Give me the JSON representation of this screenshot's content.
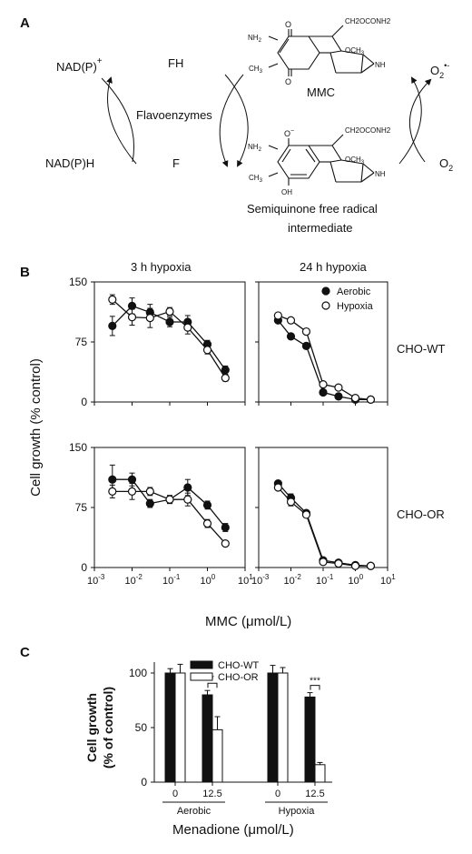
{
  "panel_labels": {
    "a": "A",
    "b": "B",
    "c": "C"
  },
  "panel_a": {
    "nadp_plus": "NAD(P)",
    "nadp_plus_sup": "+",
    "nadph": "NAD(P)H",
    "fh": "FH",
    "f": "F",
    "flavoenzymes": "Flavoenzymes",
    "mmc_name": "MMC",
    "semiquinone_line1": "Semiquinone free radical",
    "semiquinone_line2": "intermediate",
    "o2_radical": "O",
    "o2_radical_sub": "2",
    "o2_radical_sup": "•-",
    "o2": "O",
    "o2_sub": "2",
    "struct_labels": {
      "nh2": "NH",
      "nh2_sub": "2",
      "ch3": "CH",
      "ch3_sub": "3",
      "och3": "OCH",
      "och3_sub": "3",
      "carbamate": "CH2OCONH2",
      "nh": "NH",
      "oh": "OH",
      "o_minus": "O",
      "o_minus_sup": "−",
      "o": "O"
    }
  },
  "panel_b": {
    "ylabel": "Cell growth (% control)",
    "xlabel": "MMC (μmol/L)",
    "col_titles": [
      "3 h hypoxia",
      "24 h hypoxia"
    ],
    "row_labels": [
      "CHO-WT",
      "CHO-OR"
    ],
    "legend": [
      {
        "name": "Aerobic",
        "marker": "filled"
      },
      {
        "name": "Hypoxia",
        "marker": "open"
      }
    ],
    "y_ticks": [
      "0",
      "75",
      "150"
    ],
    "x_tick_bases": [
      "10",
      "10",
      "10",
      "10",
      "10"
    ],
    "x_tick_exps": [
      "-3",
      "-2",
      "-1",
      "0",
      "1"
    ]
  },
  "panel_c": {
    "ylabel_line1": "Cell growth",
    "ylabel_line2": "(% of control)",
    "xlabel": "Menadione (μmol/L)",
    "legend": [
      "CHO-WT",
      "CHO-OR"
    ],
    "y_ticks": [
      "0",
      "50",
      "100"
    ],
    "dose_labels": [
      "0",
      "12.5",
      "0",
      "12.5"
    ],
    "group_labels": [
      "Aerobic",
      "Hypoxia"
    ],
    "significance": [
      "*",
      "***"
    ]
  },
  "colors": {
    "black": "#111111",
    "white": "#ffffff",
    "grey": "#555555"
  },
  "chart_data": [
    {
      "type": "line",
      "panel": "B",
      "col_title": "3 h hypoxia",
      "row": "CHO-WT",
      "x_scale": "log",
      "xlim": [
        0.001,
        10
      ],
      "ylim": [
        0,
        150
      ],
      "series": [
        {
          "name": "Aerobic",
          "x": [
            0.003,
            0.01,
            0.03,
            0.1,
            0.3,
            1,
            3
          ],
          "y": [
            95,
            120,
            112,
            100,
            100,
            72,
            40
          ],
          "err": [
            12,
            10,
            10,
            6,
            8,
            5,
            5
          ]
        },
        {
          "name": "Hypoxia",
          "x": [
            0.003,
            0.01,
            0.03,
            0.1,
            0.3,
            1,
            3
          ],
          "y": [
            128,
            106,
            105,
            113,
            93,
            65,
            30
          ],
          "err": [
            6,
            10,
            12,
            5,
            8,
            5,
            4
          ]
        }
      ]
    },
    {
      "type": "line",
      "panel": "B",
      "col_title": "24 h hypoxia",
      "row": "CHO-WT",
      "x_scale": "log",
      "xlim": [
        0.001,
        10
      ],
      "ylim": [
        0,
        150
      ],
      "series": [
        {
          "name": "Aerobic",
          "x": [
            0.004,
            0.01,
            0.03,
            0.1,
            0.3,
            1,
            3
          ],
          "y": [
            102,
            82,
            70,
            12,
            7,
            3,
            3
          ],
          "err": [
            0,
            0,
            0,
            0,
            0,
            0,
            0
          ]
        },
        {
          "name": "Hypoxia",
          "x": [
            0.004,
            0.01,
            0.03,
            0.1,
            0.3,
            1,
            3
          ],
          "y": [
            108,
            102,
            88,
            22,
            18,
            5,
            3
          ],
          "err": [
            0,
            0,
            0,
            0,
            0,
            0,
            0
          ]
        }
      ]
    },
    {
      "type": "line",
      "panel": "B",
      "col_title": "3 h hypoxia",
      "row": "CHO-OR",
      "x_scale": "log",
      "xlim": [
        0.001,
        10
      ],
      "ylim": [
        0,
        150
      ],
      "series": [
        {
          "name": "Aerobic",
          "x": [
            0.003,
            0.01,
            0.03,
            0.1,
            0.3,
            1,
            3
          ],
          "y": [
            110,
            110,
            80,
            85,
            100,
            78,
            50
          ],
          "err": [
            18,
            8,
            5,
            5,
            10,
            5,
            5
          ]
        },
        {
          "name": "Hypoxia",
          "x": [
            0.003,
            0.01,
            0.03,
            0.1,
            0.3,
            1,
            3
          ],
          "y": [
            95,
            95,
            95,
            85,
            85,
            55,
            30
          ],
          "err": [
            8,
            10,
            5,
            5,
            8,
            5,
            3
          ]
        }
      ]
    },
    {
      "type": "line",
      "panel": "B",
      "col_title": "24 h hypoxia",
      "row": "CHO-OR",
      "x_scale": "log",
      "xlim": [
        0.001,
        10
      ],
      "ylim": [
        0,
        150
      ],
      "series": [
        {
          "name": "Aerobic",
          "x": [
            0.004,
            0.01,
            0.03,
            0.1,
            0.3,
            1,
            3
          ],
          "y": [
            105,
            87,
            68,
            9,
            6,
            3,
            2
          ],
          "err": [
            0,
            5,
            0,
            0,
            0,
            0,
            0
          ]
        },
        {
          "name": "Hypoxia",
          "x": [
            0.004,
            0.01,
            0.03,
            0.1,
            0.3,
            1,
            3
          ],
          "y": [
            100,
            82,
            66,
            7,
            5,
            2,
            2
          ],
          "err": [
            0,
            5,
            0,
            0,
            0,
            0,
            0
          ]
        }
      ]
    },
    {
      "type": "bar",
      "panel": "C",
      "categories": [
        "Aerobic 0",
        "Aerobic 12.5",
        "Hypoxia 0",
        "Hypoxia 12.5"
      ],
      "ylim": [
        0,
        110
      ],
      "series": [
        {
          "name": "CHO-WT",
          "values": [
            100,
            80,
            100,
            78
          ],
          "err": [
            4,
            4,
            7,
            4
          ]
        },
        {
          "name": "CHO-OR",
          "values": [
            100,
            48,
            100,
            16
          ],
          "err": [
            8,
            12,
            5,
            2
          ]
        }
      ]
    }
  ]
}
